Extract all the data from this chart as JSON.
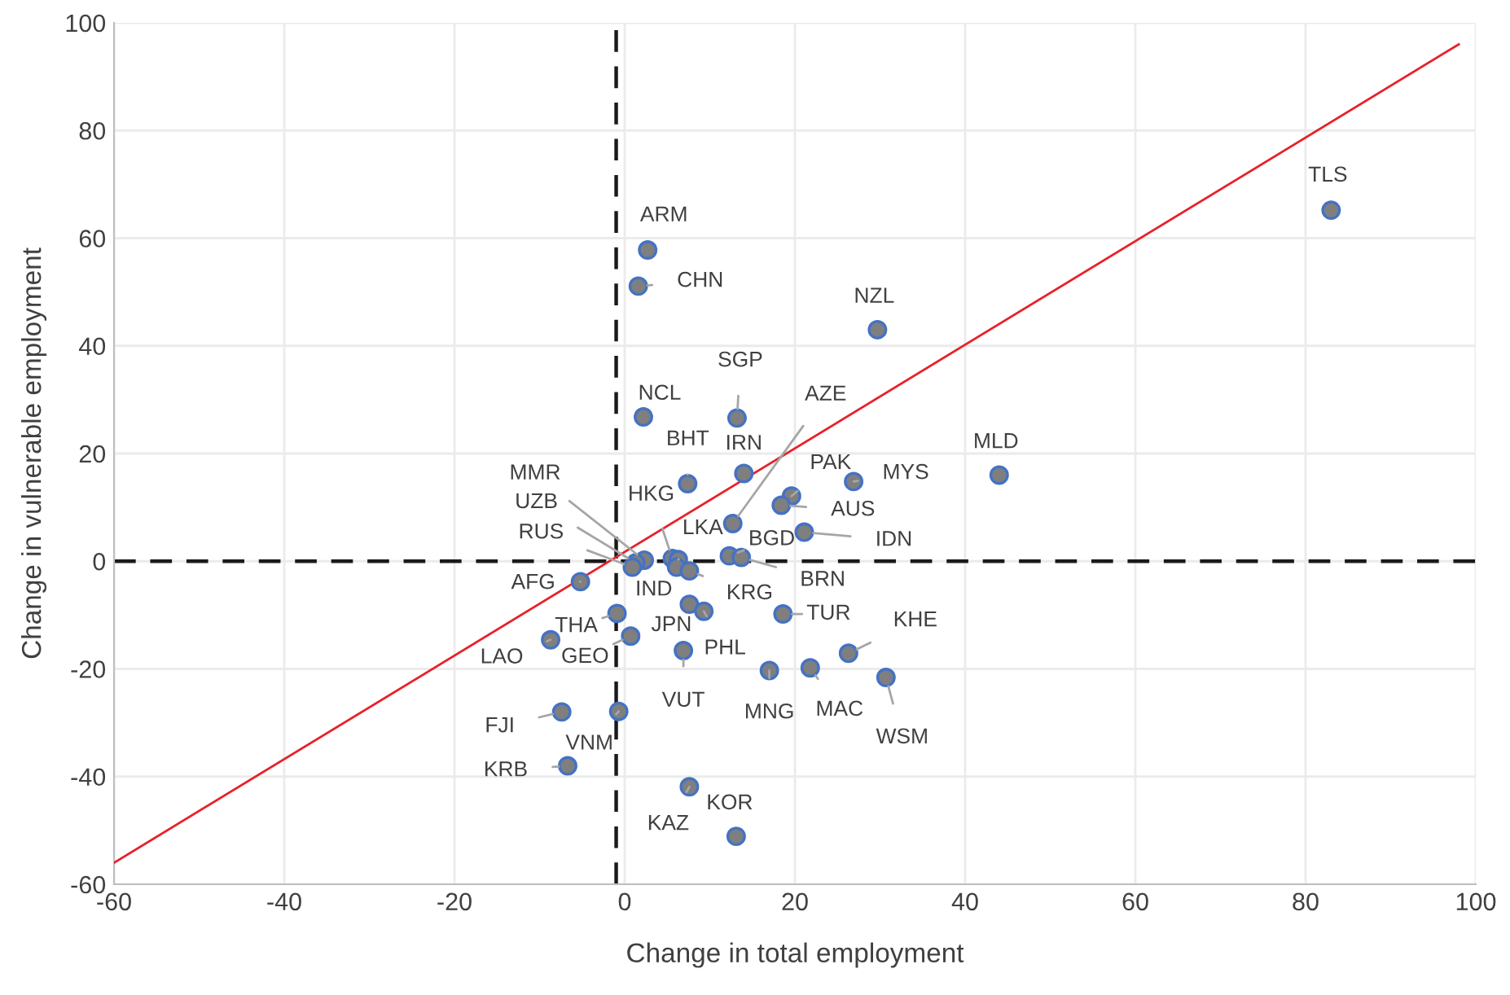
{
  "chart_data": {
    "type": "scatter",
    "xlabel": "Change in total employment",
    "ylabel": "Change in vulnerable employment",
    "xlim": [
      -60,
      100
    ],
    "ylim": [
      -60,
      100
    ],
    "xticks": [
      -60,
      -40,
      -20,
      0,
      20,
      40,
      60,
      80,
      100
    ],
    "yticks": [
      -60,
      -40,
      -20,
      0,
      20,
      40,
      60,
      80,
      100
    ],
    "grid": true,
    "marker": "circle",
    "series": [
      {
        "type": "scatter",
        "color": "#7f7f7f",
        "x": [
          83.0,
          2.7,
          1.6,
          29.7,
          44.0,
          2.2,
          13.2,
          7.4,
          14.0,
          12.7,
          19.6,
          26.9,
          18.4,
          21.1,
          2.3,
          1.3,
          0.9,
          5.6,
          6.3,
          12.3,
          13.7,
          -5.2,
          6.1,
          7.6,
          -0.9,
          -8.7,
          0.7,
          7.6,
          9.3,
          18.6,
          26.3,
          6.9,
          17.0,
          21.8,
          30.7,
          -7.4,
          -0.7,
          -6.7,
          7.6,
          13.1
        ],
        "values": [
          65.2,
          57.8,
          51.1,
          43.0,
          16.0,
          26.8,
          26.6,
          14.4,
          16.3,
          7.0,
          12.1,
          14.8,
          10.4,
          5.4,
          0.2,
          -0.3,
          -1.1,
          0.5,
          0.3,
          1.0,
          0.7,
          -3.8,
          -1.1,
          -1.8,
          -9.7,
          -14.6,
          -13.9,
          -8.0,
          -9.3,
          -9.8,
          -17.1,
          -16.6,
          -20.3,
          -19.8,
          -21.6,
          -28.0,
          -27.9,
          -38.0,
          -41.9,
          -51.1
        ]
      },
      {
        "type": "line",
        "color": "#e8202a",
        "x": [
          -60,
          98
        ],
        "values": [
          -56,
          96
        ],
        "marker": "none"
      }
    ],
    "ref_lines": [
      {
        "axis": "x",
        "value": -1,
        "color": "#1a1a1a",
        "line_style": "dashed"
      },
      {
        "axis": "y",
        "value": 0,
        "color": "#1a1a1a",
        "line_style": "dashed"
      }
    ],
    "annotations": [
      {
        "text": "TLS",
        "x": 83.0,
        "y": 65.2
      },
      {
        "text": "ARM",
        "x": 2.7,
        "y": 57.8
      },
      {
        "text": "CHN",
        "x": 1.6,
        "y": 51.1
      },
      {
        "text": "NZL",
        "x": 29.7,
        "y": 43.0
      },
      {
        "text": "MLD",
        "x": 44.0,
        "y": 16.0
      },
      {
        "text": "NCL",
        "x": 2.2,
        "y": 26.8
      },
      {
        "text": "SGP",
        "x": 13.2,
        "y": 26.6
      },
      {
        "text": "BHT",
        "x": 7.4,
        "y": 14.4
      },
      {
        "text": "IRN",
        "x": 14.0,
        "y": 16.3
      },
      {
        "text": "AZE",
        "x": 12.7,
        "y": 7.0
      },
      {
        "text": "PAK",
        "x": 19.6,
        "y": 12.1
      },
      {
        "text": "MYS",
        "x": 26.9,
        "y": 14.8
      },
      {
        "text": "AUS",
        "x": 18.4,
        "y": 10.4
      },
      {
        "text": "IDN",
        "x": 21.1,
        "y": 5.4
      },
      {
        "text": "MMR",
        "x": 2.3,
        "y": 0.2
      },
      {
        "text": "UZB",
        "x": 1.3,
        "y": -0.3
      },
      {
        "text": "RUS",
        "x": 0.9,
        "y": -1.1
      },
      {
        "text": "HKG",
        "x": 5.6,
        "y": 0.5
      },
      {
        "text": "LKA",
        "x": 6.3,
        "y": 0.3
      },
      {
        "text": "BGD",
        "x": 12.3,
        "y": 1.0
      },
      {
        "text": "BRN",
        "x": 13.7,
        "y": 0.7
      },
      {
        "text": "AFG",
        "x": -5.2,
        "y": -3.8
      },
      {
        "text": "IND",
        "x": 6.1,
        "y": -1.1
      },
      {
        "text": "KRG",
        "x": 7.6,
        "y": -1.8
      },
      {
        "text": "THA",
        "x": -0.9,
        "y": -9.7
      },
      {
        "text": "LAO",
        "x": -8.7,
        "y": -14.6
      },
      {
        "text": "GEO",
        "x": 0.7,
        "y": -13.9
      },
      {
        "text": "JPN",
        "x": 7.6,
        "y": -8.0
      },
      {
        "text": "PHL",
        "x": 9.3,
        "y": -9.3
      },
      {
        "text": "TUR",
        "x": 18.6,
        "y": -9.8
      },
      {
        "text": "KHE",
        "x": 26.3,
        "y": -17.1
      },
      {
        "text": "VUT",
        "x": 6.9,
        "y": -16.6
      },
      {
        "text": "MNG",
        "x": 17.0,
        "y": -20.3
      },
      {
        "text": "MAC",
        "x": 21.8,
        "y": -19.8
      },
      {
        "text": "WSM",
        "x": 30.7,
        "y": -21.6
      },
      {
        "text": "FJI",
        "x": -7.4,
        "y": -28.0
      },
      {
        "text": "VNM",
        "x": -0.7,
        "y": -27.9
      },
      {
        "text": "KRB",
        "x": -6.7,
        "y": -38.0
      },
      {
        "text": "KAZ",
        "x": 7.6,
        "y": -41.9
      },
      {
        "text": "KOR",
        "x": 13.1,
        "y": -51.1
      }
    ]
  }
}
